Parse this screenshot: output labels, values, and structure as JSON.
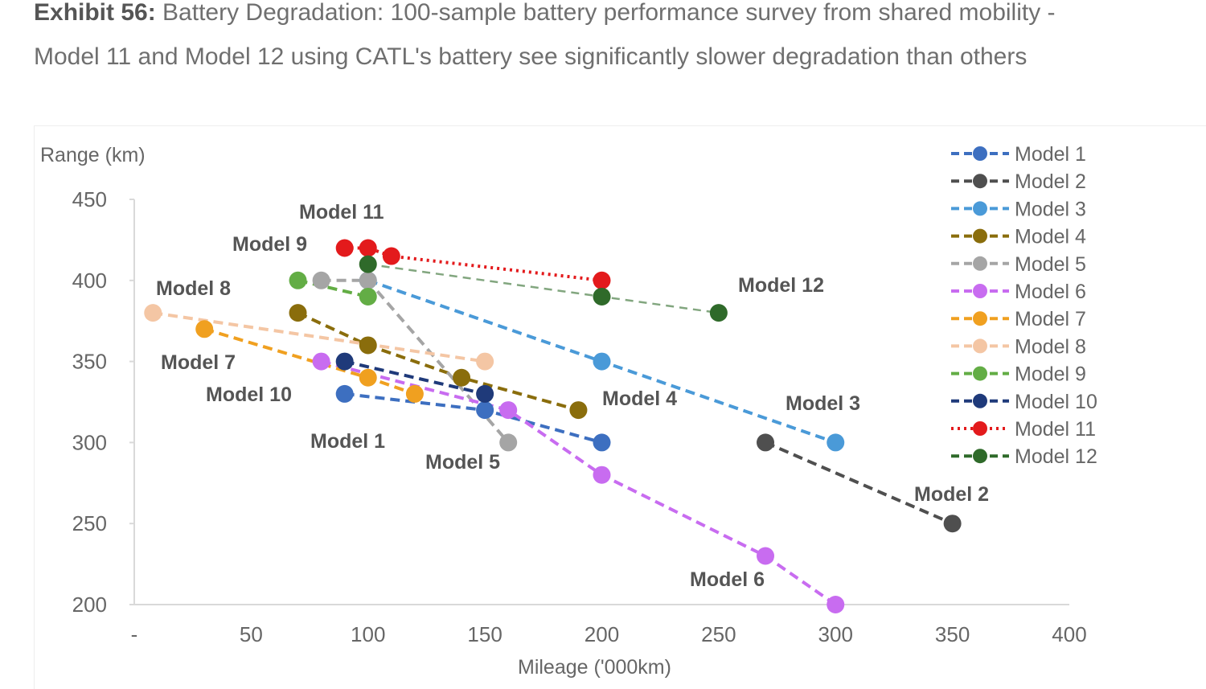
{
  "title": {
    "exhibit": "Exhibit 56:",
    "text": "Battery Degradation: 100-sample battery performance survey from shared mobility - Model 11 and Model 12 using CATL's battery see significantly slower degradation than others"
  },
  "chart_data": {
    "type": "line",
    "xlabel": "Mileage ('000km)",
    "ylabel": "Range (km)",
    "xlim": [
      0,
      400
    ],
    "ylim": [
      200,
      450
    ],
    "x_ticks": [
      "-",
      "50",
      "100",
      "150",
      "200",
      "250",
      "300",
      "350",
      "400"
    ],
    "y_ticks": [
      "200",
      "250",
      "300",
      "350",
      "400",
      "450"
    ],
    "grid": false,
    "legend_position": "right",
    "series": [
      {
        "name": "Model 1",
        "color": "#3d6fc0",
        "dash": "dash",
        "points": [
          [
            90,
            330
          ],
          [
            150,
            320
          ],
          [
            200,
            300
          ]
        ]
      },
      {
        "name": "Model 2",
        "color": "#4f4f4f",
        "dash": "dash",
        "points": [
          [
            270,
            300
          ],
          [
            350,
            250
          ]
        ]
      },
      {
        "name": "Model 3",
        "color": "#4a9ad8",
        "dash": "dash",
        "points": [
          [
            100,
            400
          ],
          [
            200,
            350
          ],
          [
            300,
            300
          ]
        ]
      },
      {
        "name": "Model 4",
        "color": "#8a6d0c",
        "dash": "dash",
        "points": [
          [
            70,
            380
          ],
          [
            100,
            360
          ],
          [
            140,
            340
          ],
          [
            190,
            320
          ]
        ]
      },
      {
        "name": "Model 5",
        "color": "#a5a5a5",
        "dash": "dash",
        "points": [
          [
            80,
            400
          ],
          [
            100,
            400
          ],
          [
            160,
            300
          ]
        ]
      },
      {
        "name": "Model 6",
        "color": "#c86cf0",
        "dash": "dash",
        "points": [
          [
            80,
            350
          ],
          [
            160,
            320
          ],
          [
            200,
            280
          ],
          [
            270,
            230
          ],
          [
            300,
            200
          ]
        ]
      },
      {
        "name": "Model 7",
        "color": "#f0a020",
        "dash": "dash",
        "points": [
          [
            30,
            370
          ],
          [
            100,
            340
          ],
          [
            120,
            330
          ]
        ]
      },
      {
        "name": "Model 8",
        "color": "#f4c6a4",
        "dash": "dash",
        "points": [
          [
            8,
            380
          ],
          [
            150,
            350
          ]
        ]
      },
      {
        "name": "Model 9",
        "color": "#63ad45",
        "dash": "dash",
        "points": [
          [
            70,
            400
          ],
          [
            100,
            390
          ]
        ]
      },
      {
        "name": "Model 10",
        "color": "#1f3a7a",
        "dash": "dash",
        "points": [
          [
            90,
            350
          ],
          [
            150,
            330
          ]
        ]
      },
      {
        "name": "Model 11",
        "color": "#e31a1c",
        "dash": "dot",
        "points": [
          [
            90,
            420
          ],
          [
            100,
            420
          ],
          [
            110,
            415
          ],
          [
            200,
            400
          ]
        ]
      },
      {
        "name": "Model 12",
        "color": "#2f6a2a",
        "dash": "dash-light",
        "points": [
          [
            100,
            410
          ],
          [
            200,
            390
          ],
          [
            250,
            380
          ]
        ]
      }
    ],
    "annotations": [
      "Model 11",
      "Model 9",
      "Model 8",
      "Model 7",
      "Model 10",
      "Model 1",
      "Model 5",
      "Model 4",
      "Model 12",
      "Model 3",
      "Model 2",
      "Model 6"
    ]
  }
}
